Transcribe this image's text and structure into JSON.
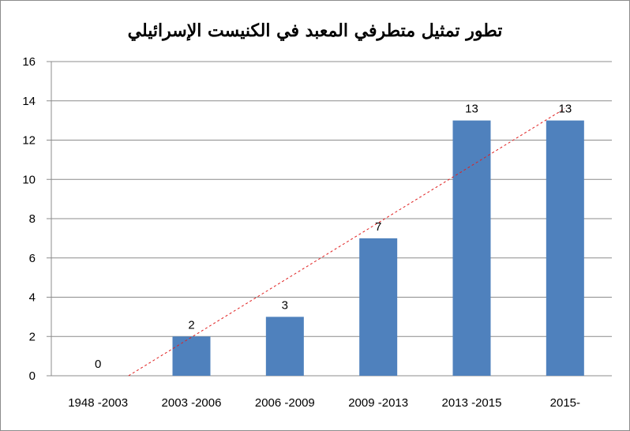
{
  "chart_data": {
    "type": "bar",
    "title": "تطور تمثيل متطرفي المعبد في الكنيست الإسرائيلي",
    "categories": [
      "1948 -2003",
      "2003 -2006",
      "2006 -2009",
      "2009 -2013",
      "2013 -2015",
      "2015-"
    ],
    "series": [
      {
        "values": [
          0,
          2,
          3,
          7,
          13,
          13
        ]
      }
    ],
    "data_labels": [
      "0",
      "2",
      "3",
      "7",
      "13",
      "13"
    ],
    "xlabel": "",
    "ylabel": "",
    "ylim": [
      0,
      16
    ],
    "yticks": [
      0,
      2,
      4,
      6,
      8,
      10,
      12,
      14,
      16
    ],
    "grid": true,
    "legend": "none",
    "trendline": {
      "style": "linear",
      "dashed": true
    },
    "colors": {
      "bar": "#4f81bd",
      "trendline": "#e02020",
      "grid": "#8c8c8c",
      "axis": "#8c8c8c"
    }
  }
}
